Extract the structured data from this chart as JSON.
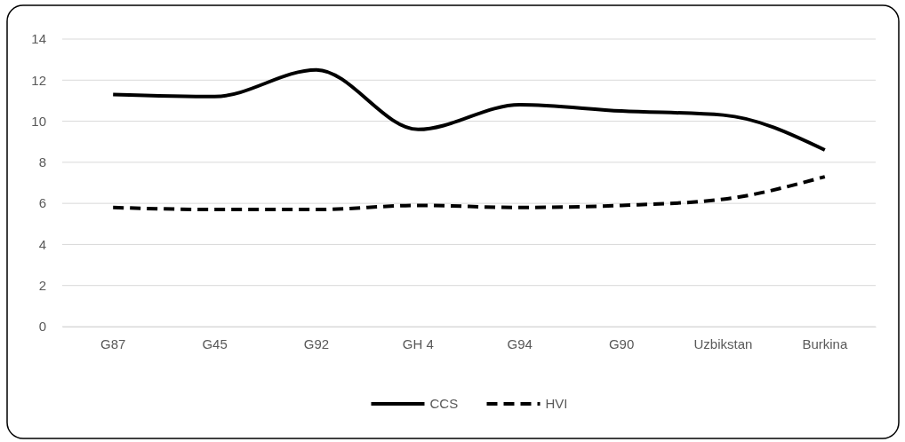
{
  "chart_data": {
    "type": "line",
    "categories": [
      "G87",
      "G45",
      "G92",
      "GH 4",
      "G94",
      "G90",
      "Uzbikstan",
      "Burkina"
    ],
    "series": [
      {
        "name": "CCS",
        "color": "#000000",
        "line_style": "solid",
        "values": [
          11.3,
          11.2,
          12.5,
          9.6,
          10.8,
          10.5,
          10.3,
          8.6
        ]
      },
      {
        "name": "HVI",
        "color": "#000000",
        "line_style": "dashed",
        "values": [
          5.8,
          5.7,
          5.7,
          5.9,
          5.8,
          5.9,
          6.2,
          7.3
        ]
      }
    ],
    "ylim": [
      0,
      14
    ],
    "yticks": [
      0,
      2,
      4,
      6,
      8,
      10,
      12,
      14
    ],
    "grid": "y",
    "legend": "bottom",
    "marker": "none"
  }
}
